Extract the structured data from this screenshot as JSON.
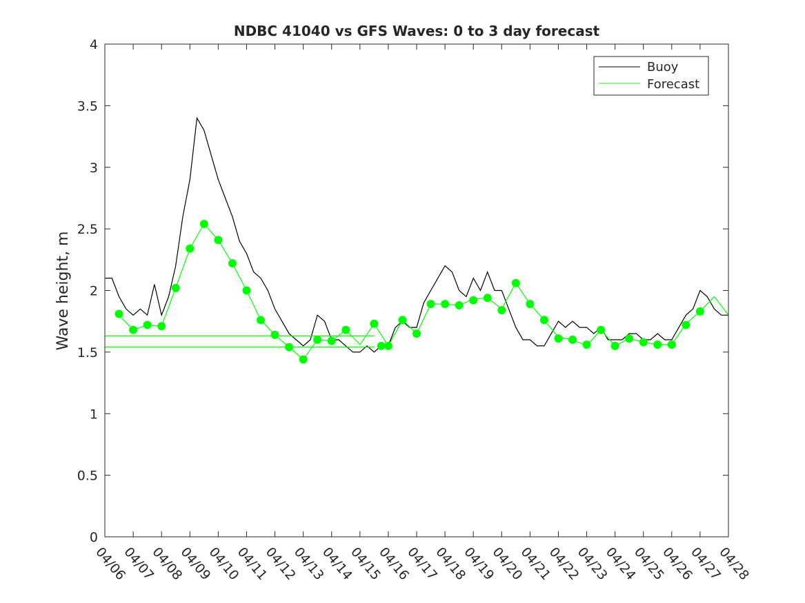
{
  "chart_data": {
    "type": "line",
    "title": "NDBC 41040 vs GFS Waves: 0 to 3 day forecast",
    "xlabel": "",
    "ylabel": "Wave height, m",
    "xlim": [
      0,
      22
    ],
    "ylim": [
      0,
      4
    ],
    "yticks": [
      0,
      0.5,
      1,
      1.5,
      2,
      2.5,
      3,
      3.5,
      4
    ],
    "ytick_labels": [
      "0",
      "0.5",
      "1",
      "1.5",
      "2",
      "2.5",
      "3",
      "3.5",
      "4"
    ],
    "xticks": [
      0,
      1,
      2,
      3,
      4,
      5,
      6,
      7,
      8,
      9,
      10,
      11,
      12,
      13,
      14,
      15,
      16,
      17,
      18,
      19,
      20,
      21,
      22
    ],
    "xtick_labels": [
      "04/06",
      "04/07",
      "04/08",
      "04/09",
      "04/10",
      "04/11",
      "04/12",
      "04/13",
      "04/14",
      "04/15",
      "04/16",
      "04/17",
      "04/18",
      "04/19",
      "04/20",
      "04/21",
      "04/22",
      "04/23",
      "04/24",
      "04/25",
      "04/26",
      "04/27",
      "04/28"
    ],
    "grid": false,
    "legend": {
      "placement": "top-right",
      "entries": [
        "Buoy",
        "Forecast"
      ]
    },
    "colors": {
      "buoy": "#000000",
      "forecast": "#00ff00"
    },
    "buoy": {
      "x": [
        0,
        0.25,
        0.5,
        0.75,
        1,
        1.25,
        1.5,
        1.75,
        2,
        2.25,
        2.5,
        2.75,
        3,
        3.25,
        3.5,
        3.75,
        4,
        4.25,
        4.5,
        4.75,
        5,
        5.25,
        5.5,
        5.75,
        6,
        6.25,
        6.5,
        6.75,
        7,
        7.25,
        7.5,
        7.75,
        8,
        8.25,
        8.5,
        8.75,
        9,
        9.25,
        9.5,
        9.75,
        10,
        10.25,
        10.5,
        10.75,
        11,
        11.25,
        11.5,
        11.75,
        12,
        12.25,
        12.5,
        12.75,
        13,
        13.25,
        13.5,
        13.75,
        14,
        14.25,
        14.5,
        14.75,
        15,
        15.25,
        15.5,
        15.75,
        16,
        16.25,
        16.5,
        16.75,
        17,
        17.25,
        17.5,
        17.75,
        18,
        18.25,
        18.5,
        18.75,
        19,
        19.25,
        19.5,
        19.75,
        20,
        20.25,
        20.5,
        20.75,
        21,
        21.25,
        21.5,
        21.75,
        22
      ],
      "y": [
        2.1,
        2.1,
        1.95,
        1.85,
        1.8,
        1.85,
        1.8,
        2.05,
        1.8,
        1.95,
        2.2,
        2.6,
        2.9,
        3.4,
        3.3,
        3.1,
        2.9,
        2.75,
        2.6,
        2.4,
        2.3,
        2.15,
        2.1,
        2.0,
        1.85,
        1.75,
        1.65,
        1.6,
        1.55,
        1.6,
        1.8,
        1.75,
        1.6,
        1.6,
        1.55,
        1.5,
        1.5,
        1.55,
        1.5,
        1.55,
        1.55,
        1.7,
        1.75,
        1.7,
        1.7,
        1.9,
        2.0,
        2.1,
        2.2,
        2.15,
        2.0,
        1.95,
        2.1,
        2.0,
        2.15,
        2.0,
        2.0,
        1.85,
        1.7,
        1.6,
        1.6,
        1.55,
        1.55,
        1.65,
        1.75,
        1.7,
        1.75,
        1.7,
        1.7,
        1.65,
        1.7,
        1.6,
        1.6,
        1.6,
        1.65,
        1.65,
        1.6,
        1.6,
        1.65,
        1.6,
        1.6,
        1.7,
        1.8,
        1.85,
        2.0,
        1.95,
        1.85,
        1.8,
        1.8
      ]
    },
    "forecast": {
      "x": [
        0.5,
        1,
        1.5,
        2,
        2.5,
        3,
        3.5,
        4,
        4.5,
        5,
        5.5,
        6,
        6.5,
        7,
        7.5,
        8,
        8.5,
        9,
        9.5,
        10,
        10.5,
        11,
        11.5,
        12,
        12.5,
        13,
        13.5,
        14,
        14.5,
        15,
        15.5,
        16,
        16.5,
        17,
        17.5,
        18,
        18.5,
        19,
        19.5,
        20,
        20.5,
        21,
        21.5,
        22
      ],
      "y": [
        1.8,
        1.68,
        1.72,
        1.71,
        2.02,
        2.34,
        2.54,
        2.41,
        2.22,
        2.0,
        1.76,
        1.64,
        1.54,
        1.44,
        1.6,
        1.59,
        1.68,
        1.56,
        1.73,
        1.55,
        1.76,
        1.65,
        1.89,
        1.89,
        1.88,
        1.93,
        1.94,
        1.85,
        2.06,
        1.89,
        1.76,
        1.62,
        1.6,
        1.55,
        1.68,
        1.55,
        1.61,
        1.58,
        1.56,
        1.56,
        1.73,
        1.83,
        1.95,
        1.8
      ]
    },
    "forecast_markers": {
      "x": [
        0.5,
        1,
        1.5,
        2,
        2.5,
        3,
        3.5,
        4,
        4.5,
        5,
        5.5,
        6,
        6.5,
        7,
        7.5,
        8,
        8.5,
        9.5,
        9.75,
        10,
        10.5,
        11,
        11.5,
        12,
        12.5,
        13,
        13.5,
        14,
        14.5,
        15,
        15.5,
        16,
        16.5,
        17,
        17.5,
        18,
        18.5,
        19,
        19.5,
        20,
        20.5,
        21
      ],
      "y": [
        1.81,
        1.68,
        1.72,
        1.71,
        2.02,
        2.34,
        2.54,
        2.41,
        2.22,
        2.0,
        1.76,
        1.64,
        1.54,
        1.44,
        1.6,
        1.59,
        1.68,
        1.73,
        1.55,
        1.55,
        1.76,
        1.65,
        1.89,
        1.89,
        1.88,
        1.92,
        1.94,
        1.84,
        2.06,
        1.89,
        1.76,
        1.61,
        1.6,
        1.56,
        1.68,
        1.55,
        1.61,
        1.58,
        1.56,
        1.56,
        1.72,
        1.83
      ]
    },
    "forecast_flat_lines": [
      {
        "x": [
          0,
          9.5
        ],
        "y": 1.63
      },
      {
        "x": [
          0,
          9.5
        ],
        "y": 1.54
      }
    ]
  }
}
